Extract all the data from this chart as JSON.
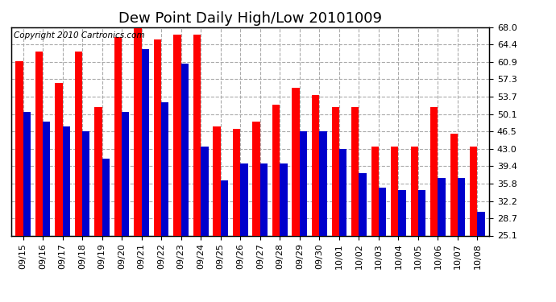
{
  "title": "Dew Point Daily High/Low 20101009",
  "copyright": "Copyright 2010 Cartronics.com",
  "dates": [
    "09/15",
    "09/16",
    "09/17",
    "09/18",
    "09/19",
    "09/20",
    "09/21",
    "09/22",
    "09/23",
    "09/24",
    "09/25",
    "09/26",
    "09/27",
    "09/28",
    "09/29",
    "09/30",
    "10/01",
    "10/02",
    "10/03",
    "10/04",
    "10/05",
    "10/06",
    "10/07",
    "10/08"
  ],
  "highs": [
    61.0,
    63.0,
    56.5,
    63.0,
    51.5,
    66.0,
    68.5,
    65.5,
    66.5,
    66.5,
    47.5,
    47.0,
    48.5,
    52.0,
    55.5,
    54.0,
    51.5,
    51.5,
    43.5,
    43.5,
    43.5,
    51.5,
    46.0,
    43.5
  ],
  "lows": [
    50.5,
    48.5,
    47.5,
    46.5,
    41.0,
    50.5,
    63.5,
    52.5,
    60.5,
    43.5,
    36.5,
    40.0,
    40.0,
    40.0,
    46.5,
    46.5,
    43.0,
    38.0,
    35.0,
    34.5,
    34.5,
    37.0,
    37.0,
    30.0
  ],
  "bar_width": 0.38,
  "ylim_min": 25.1,
  "ylim_max": 68.0,
  "yticks": [
    25.1,
    28.7,
    32.2,
    35.8,
    39.4,
    43.0,
    46.5,
    50.1,
    53.7,
    57.3,
    60.9,
    64.4,
    68.0
  ],
  "high_color": "#ff0000",
  "low_color": "#0000cc",
  "bg_color": "#ffffff",
  "grid_color": "#aaaaaa",
  "title_fontsize": 13,
  "tick_fontsize": 8,
  "copyright_fontsize": 7.5
}
